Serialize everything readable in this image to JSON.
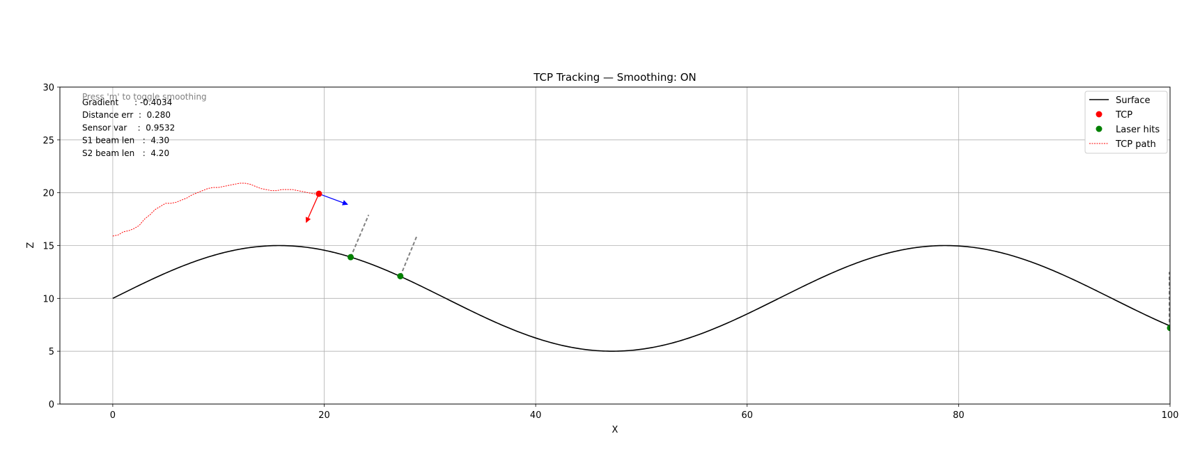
{
  "chart_data": {
    "type": "line",
    "title": "TCP Tracking — Smoothing: ON",
    "xlabel": "X",
    "ylabel": "Z",
    "xlim": [
      -5,
      100
    ],
    "ylim": [
      0,
      30
    ],
    "xticks": [
      0,
      20,
      40,
      60,
      80,
      100
    ],
    "yticks": [
      0,
      5,
      10,
      15,
      20,
      25,
      30
    ],
    "grid": true,
    "legend_position": "top-right",
    "legend": [
      "Surface",
      "TCP",
      "Laser hits",
      "TCP path"
    ],
    "surface": {
      "name": "Surface",
      "color": "#000000",
      "function": "10 + 5*sin(2*pi*x/63)",
      "x_range": [
        0,
        100
      ]
    },
    "tcp": {
      "name": "TCP",
      "color": "#ff0000",
      "x": 19.5,
      "y": 19.9,
      "normal_arrow_tip": [
        18.3,
        17.2
      ],
      "tangent_arrow_tip": [
        22.2,
        18.9
      ],
      "normal_color": "#ff0000",
      "tangent_color": "#0000ff"
    },
    "laser_hits": {
      "name": "Laser hits",
      "color": "#008000",
      "points": [
        [
          22.5,
          13.9
        ],
        [
          27.2,
          12.1
        ]
      ],
      "beam_ends": [
        [
          24.2,
          17.9
        ],
        [
          28.8,
          16.0
        ]
      ],
      "beam_color": "#808080"
    },
    "tcp_path": {
      "name": "TCP path",
      "color": "#ff0000",
      "x": [
        0,
        0.5,
        1,
        1.5,
        2,
        2.5,
        3,
        3.5,
        4,
        4.5,
        5,
        5.5,
        6,
        6.5,
        7,
        7.5,
        8,
        8.5,
        9,
        9.5,
        10,
        10.5,
        11,
        11.5,
        12,
        12.5,
        13,
        13.5,
        14,
        14.5,
        15,
        15.5,
        16,
        16.5,
        17,
        17.5,
        18,
        18.5,
        19,
        19.5
      ],
      "y": [
        15.9,
        16.0,
        16.3,
        16.4,
        16.6,
        16.9,
        17.5,
        17.9,
        18.4,
        18.7,
        19.0,
        19.0,
        19.1,
        19.3,
        19.5,
        19.8,
        20.0,
        20.2,
        20.4,
        20.5,
        20.5,
        20.6,
        20.7,
        20.8,
        20.9,
        20.9,
        20.8,
        20.6,
        20.4,
        20.3,
        20.2,
        20.2,
        20.3,
        20.3,
        20.3,
        20.2,
        20.1,
        20.0,
        19.9,
        19.9
      ]
    },
    "right_edge_marks": {
      "x": 100,
      "hit": [
        100,
        7.2
      ],
      "beam_segments": [
        [
          [
            100,
            11.2
          ],
          [
            100,
            12.5
          ]
        ],
        [
          [
            100,
            7.2
          ],
          [
            100,
            11.0
          ]
        ]
      ]
    }
  },
  "info": {
    "hint": "Press 'm' to toggle smoothing",
    "hint_color": "#808080",
    "lines": [
      "Gradient      : -0.4034",
      "Distance err  :  0.280",
      "Sensor var    :  0.9532",
      "S1 beam len   :  4.30",
      "S2 beam len   :  4.20"
    ]
  }
}
